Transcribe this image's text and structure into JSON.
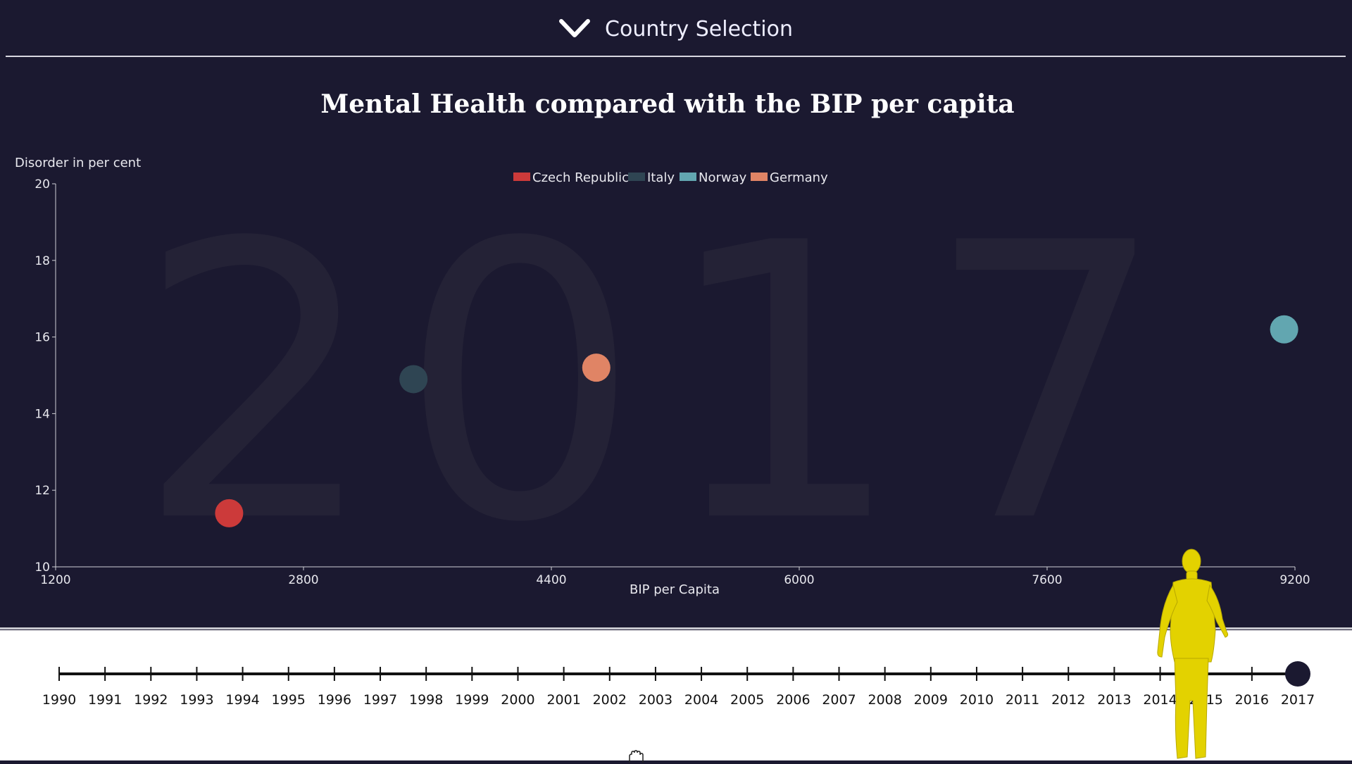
{
  "header": {
    "label": "Country Selection",
    "icon": "chevron-down-icon"
  },
  "colors": {
    "background": "#1b1930",
    "Czech Republic": "#cc3a3a",
    "Italy": "#2f4553",
    "Norway": "#62a6b0",
    "Germany": "#e08465"
  },
  "chart_data": {
    "type": "scatter",
    "title": "Mental Health compared with the BIP per capita",
    "xlabel": "BIP per Capita",
    "ylabel": "Disorder in per cent",
    "xlim": [
      1200,
      9200
    ],
    "ylim": [
      10,
      20
    ],
    "xticks": [
      "1200",
      "2800",
      "4400",
      "6000",
      "7600",
      "9200"
    ],
    "yticks": [
      "10",
      "12",
      "14",
      "16",
      "18",
      "20"
    ],
    "background_year": "2017",
    "legend_position": "top-center",
    "grid": false,
    "series": [
      {
        "name": "Czech Republic",
        "color": "#cc3a3a",
        "x": 2320,
        "y": 11.4
      },
      {
        "name": "Italy",
        "color": "#2f4553",
        "x": 3510,
        "y": 14.9
      },
      {
        "name": "Norway",
        "color": "#62a6b0",
        "x": 9130,
        "y": 16.2
      },
      {
        "name": "Germany",
        "color": "#e08465",
        "x": 4690,
        "y": 15.2
      }
    ]
  },
  "timeline": {
    "years": [
      "1990",
      "1991",
      "1992",
      "1993",
      "1994",
      "1995",
      "1996",
      "1997",
      "1998",
      "1999",
      "2000",
      "2001",
      "2002",
      "2003",
      "2004",
      "2005",
      "2006",
      "2007",
      "2008",
      "2009",
      "2010",
      "2011",
      "2012",
      "2013",
      "2014",
      "2015",
      "2016",
      "2017"
    ],
    "selected": "2017"
  }
}
